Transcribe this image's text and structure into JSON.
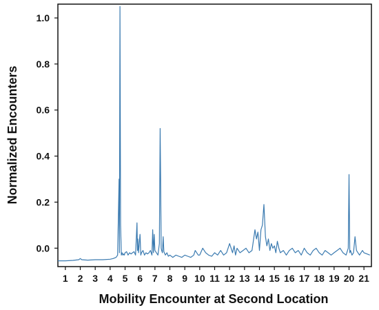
{
  "chart_data": {
    "type": "line",
    "title": "",
    "xlabel": "Mobility Encounter at Second Location",
    "ylabel": "Normalized Encounters",
    "xlim": [
      0.5,
      21.5
    ],
    "ylim": [
      -0.08,
      1.06
    ],
    "x_ticks": [
      1,
      2,
      3,
      4,
      5,
      6,
      7,
      8,
      9,
      10,
      11,
      12,
      13,
      14,
      15,
      16,
      17,
      18,
      19,
      20,
      21
    ],
    "y_ticks": [
      0.0,
      0.2,
      0.4,
      0.6,
      0.8,
      1.0
    ],
    "y_tick_labels": [
      "0.0",
      "0.2",
      "0.4",
      "0.6",
      "0.8",
      "1.0"
    ],
    "grid": false,
    "legend": "none",
    "series_color": "#3a7ab0",
    "series": [
      {
        "x": [
          0.5,
          1.0,
          1.5,
          1.9,
          2.0,
          2.1,
          2.5,
          3.0,
          3.5,
          4.0,
          4.2,
          4.4,
          4.5,
          4.6,
          4.62,
          4.66,
          4.7,
          4.75,
          4.8,
          4.85,
          4.9,
          4.95,
          5.0,
          5.1,
          5.2,
          5.3,
          5.4,
          5.5,
          5.6,
          5.7,
          5.8,
          5.83,
          5.86,
          5.9,
          5.95,
          6.0,
          6.05,
          6.1,
          6.2,
          6.3,
          6.4,
          6.5,
          6.6,
          6.7,
          6.8,
          6.85,
          6.9,
          6.95,
          7.0,
          7.1,
          7.2,
          7.3,
          7.35,
          7.38,
          7.42,
          7.45,
          7.5,
          7.55,
          7.6,
          7.7,
          7.8,
          7.9,
          8.0,
          8.2,
          8.4,
          8.6,
          8.8,
          9.0,
          9.2,
          9.4,
          9.6,
          9.7,
          9.8,
          9.9,
          10.0,
          10.2,
          10.4,
          10.6,
          10.8,
          11.0,
          11.2,
          11.4,
          11.6,
          11.8,
          12.0,
          12.2,
          12.3,
          12.4,
          12.5,
          12.7,
          12.9,
          13.1,
          13.3,
          13.5,
          13.7,
          13.8,
          13.9,
          14.0,
          14.1,
          14.2,
          14.3,
          14.4,
          14.5,
          14.6,
          14.7,
          14.8,
          14.9,
          15.0,
          15.1,
          15.2,
          15.3,
          15.4,
          15.6,
          15.8,
          16.0,
          16.2,
          16.4,
          16.6,
          16.8,
          17.0,
          17.2,
          17.4,
          17.6,
          17.8,
          18.0,
          18.2,
          18.4,
          18.6,
          18.8,
          19.0,
          19.2,
          19.4,
          19.6,
          19.8,
          19.95,
          20.0,
          20.05,
          20.1,
          20.2,
          20.3,
          20.4,
          20.5,
          20.6,
          20.7,
          20.8,
          20.9,
          21.0,
          21.2,
          21.4
        ],
        "y": [
          -0.055,
          -0.055,
          -0.053,
          -0.05,
          -0.045,
          -0.05,
          -0.052,
          -0.05,
          -0.05,
          -0.048,
          -0.045,
          -0.04,
          -0.03,
          0.3,
          -0.02,
          1.05,
          0.1,
          -0.03,
          -0.02,
          -0.03,
          -0.025,
          -0.03,
          -0.02,
          -0.015,
          -0.03,
          -0.02,
          -0.025,
          -0.02,
          -0.015,
          -0.03,
          0.11,
          -0.01,
          0.04,
          -0.02,
          0.02,
          0.06,
          -0.03,
          -0.02,
          -0.01,
          -0.03,
          -0.02,
          -0.025,
          -0.02,
          -0.01,
          -0.03,
          0.08,
          -0.02,
          0.06,
          -0.01,
          -0.02,
          -0.03,
          0.02,
          0.52,
          0.3,
          0.0,
          -0.01,
          -0.02,
          0.05,
          -0.015,
          -0.03,
          -0.02,
          -0.035,
          -0.03,
          -0.04,
          -0.03,
          -0.035,
          -0.04,
          -0.03,
          -0.035,
          -0.04,
          -0.03,
          -0.01,
          -0.02,
          -0.03,
          -0.03,
          0.0,
          -0.02,
          -0.03,
          -0.035,
          -0.02,
          -0.03,
          -0.01,
          -0.03,
          -0.02,
          0.02,
          -0.02,
          0.01,
          -0.03,
          0.0,
          -0.02,
          -0.01,
          0.0,
          -0.02,
          -0.01,
          0.08,
          0.04,
          0.07,
          -0.01,
          0.08,
          0.1,
          0.19,
          0.05,
          0.01,
          0.04,
          -0.01,
          0.02,
          0.0,
          0.01,
          -0.02,
          0.03,
          0.0,
          -0.02,
          -0.01,
          -0.03,
          -0.01,
          0.0,
          -0.02,
          -0.01,
          -0.03,
          0.0,
          -0.02,
          -0.03,
          -0.01,
          0.0,
          -0.02,
          -0.03,
          -0.01,
          -0.02,
          -0.03,
          -0.02,
          -0.01,
          0.0,
          -0.02,
          -0.03,
          0.0,
          0.32,
          -0.02,
          -0.01,
          -0.03,
          -0.02,
          0.05,
          -0.01,
          -0.02,
          -0.03,
          -0.02,
          -0.01,
          -0.02,
          -0.025,
          -0.03
        ]
      }
    ]
  }
}
